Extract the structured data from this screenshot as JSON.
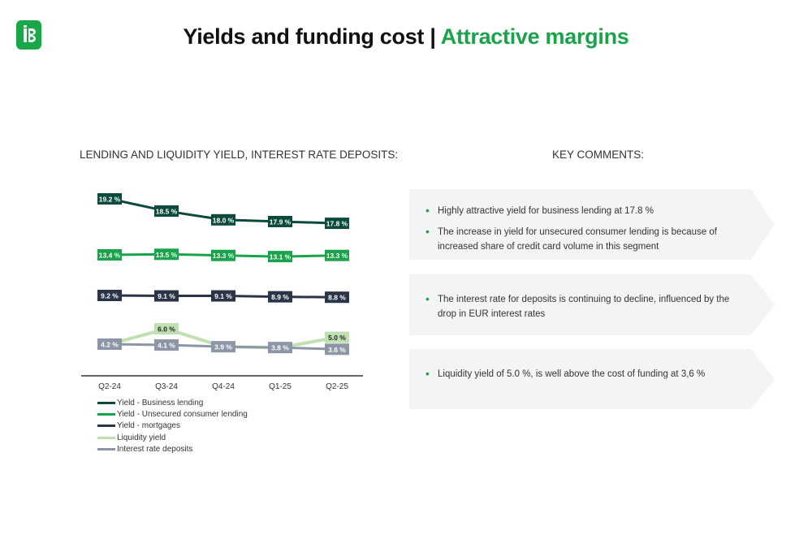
{
  "header": {
    "title_main": "Yields and funding cost | ",
    "title_accent": "Attractive margins"
  },
  "left_section": {
    "heading": "LENDING AND LIQUIDITY YIELD, INTEREST RATE DEPOSITS:"
  },
  "right_section": {
    "heading": "KEY COMMENTS:"
  },
  "comments": [
    {
      "bullets": [
        "Highly attractive yield for business lending at 17.8 %",
        "The increase in yield for unsecured consumer lending  is because of increased share of credit card volume in this segment"
      ]
    },
    {
      "bullets": [
        "The interest rate for deposits is continuing to decline, influenced by the drop in EUR interest rates"
      ]
    },
    {
      "bullets": [
        "Liquidity yield of 5.0 %, is well above the cost of funding at 3,6 %"
      ]
    }
  ],
  "colors": {
    "brand_green": "#1aa34a",
    "business_lending": "#0b4a3c",
    "consumer_lending": "#1aa34a",
    "mortgages": "#2a3547",
    "liquidity": "#bfe0b0",
    "deposits": "#8c96a6",
    "comment_bg": "#f3f4f6"
  },
  "chart_data": {
    "type": "line",
    "categories": [
      "Q2-24",
      "Q3-24",
      "Q4-24",
      "Q1-25",
      "Q2-25"
    ],
    "unit": "%",
    "series": [
      {
        "name": "Yield - Business lending",
        "values": [
          19.2,
          18.5,
          18.0,
          17.9,
          17.8
        ],
        "labels": [
          "19.2 %",
          "18.5 %",
          "18.0 %",
          "17.9 %",
          "17.8 %"
        ],
        "color": "#0b4a3c",
        "label_text_color": "#ffffff"
      },
      {
        "name": "Yield - Unsecured consumer lending",
        "values": [
          13.4,
          13.5,
          13.3,
          13.1,
          13.3
        ],
        "labels": [
          "13.4 %",
          "13.5 %",
          "13.3 %",
          "13.1 %",
          "13.3 %"
        ],
        "color": "#1aa34a",
        "label_text_color": "#ffffff"
      },
      {
        "name": "Yield - mortgages",
        "values": [
          9.2,
          9.1,
          9.1,
          8.9,
          8.8
        ],
        "labels": [
          "9.2 %",
          "9.1 %",
          "9.1 %",
          "8.9 %",
          "8.8 %"
        ],
        "color": "#2a3547",
        "label_text_color": "#ffffff"
      },
      {
        "name": "Liquidity yield",
        "values": [
          4.2,
          6.0,
          3.9,
          3.8,
          5.0
        ],
        "labels": [
          "",
          "6.0 %",
          "",
          "",
          "5.0 %"
        ],
        "color": "#bfe0b0",
        "label_text_color": "#222222"
      },
      {
        "name": "Interest rate deposits",
        "values": [
          4.2,
          4.1,
          3.9,
          3.8,
          3.6
        ],
        "labels": [
          "4.2 %",
          "4.1 %",
          "3.9 %",
          "3.8 %",
          "3.6 %"
        ],
        "color": "#8c96a6",
        "label_text_color": "#ffffff"
      }
    ],
    "legend_position": "bottom-left",
    "grid": false
  }
}
